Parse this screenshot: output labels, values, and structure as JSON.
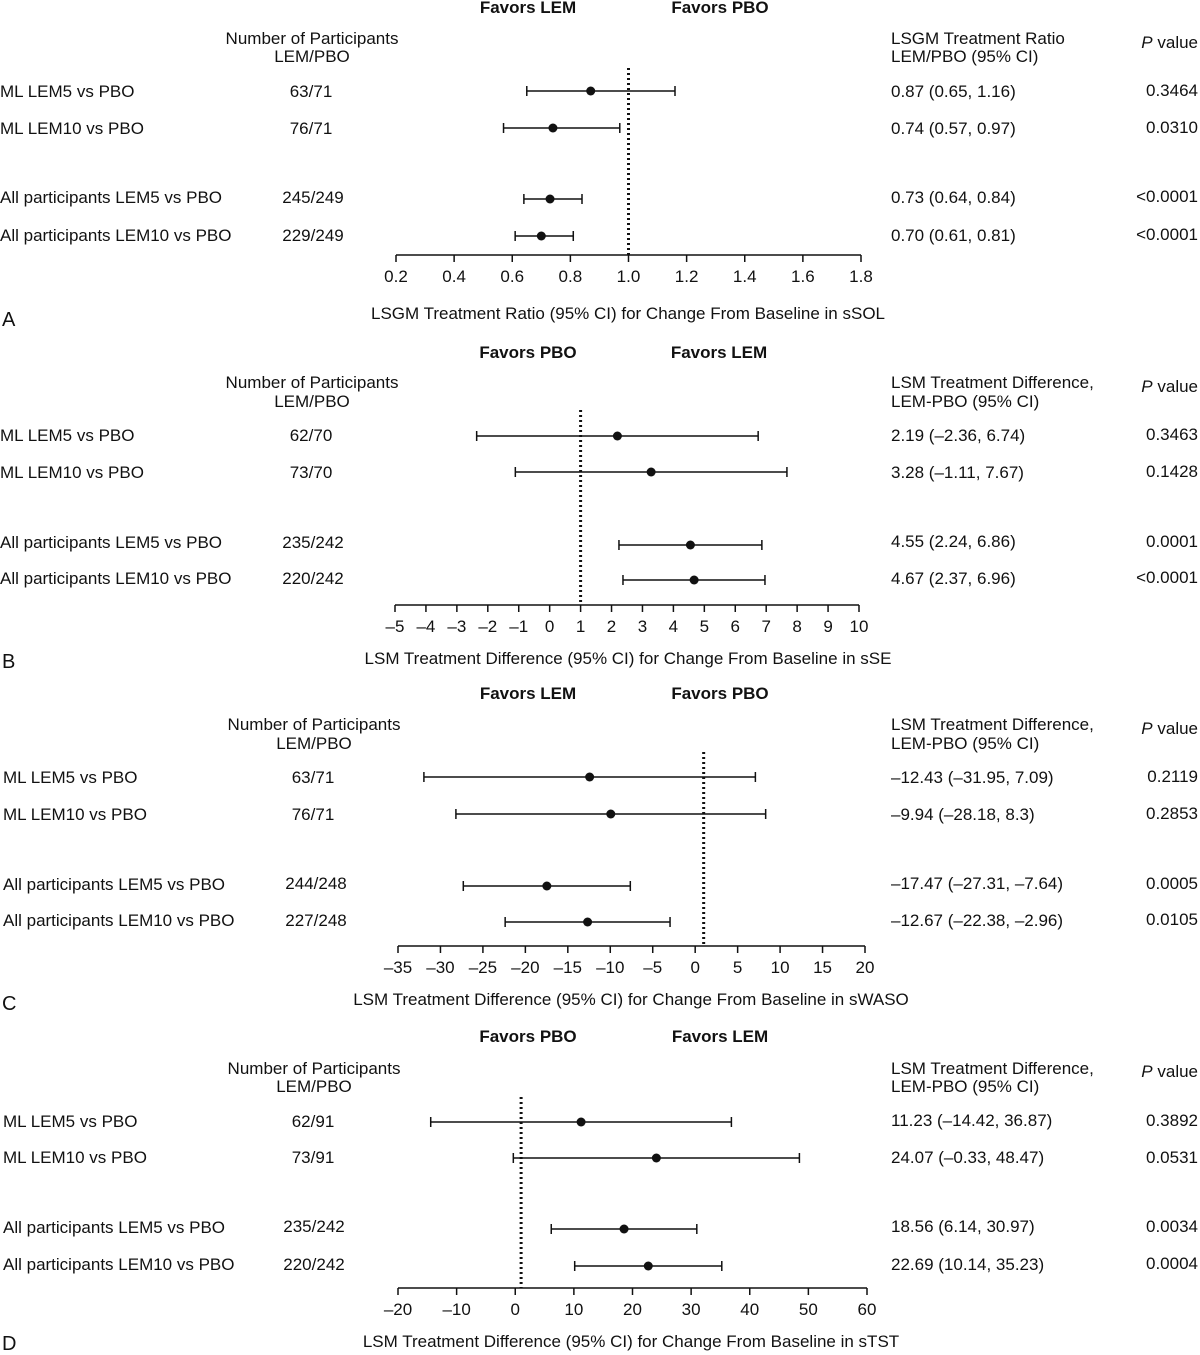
{
  "chart_data": [
    {
      "type": "forest",
      "panel_letter": "A",
      "favors_left": "Favors LEM",
      "favors_right": "Favors PBO",
      "participants_header": [
        "Number of Participants",
        "LEM/PBO"
      ],
      "estimate_header": [
        "LSGM Treatment Ratio",
        "LEM/PBO (95% CI)"
      ],
      "pvalue_header": [
        "P",
        "value"
      ],
      "reference": 1.0,
      "xlim": [
        0.2,
        1.8
      ],
      "ticks": [
        0.2,
        0.4,
        0.6,
        0.8,
        1.0,
        1.2,
        1.4,
        1.6,
        1.8
      ],
      "tick_labels": [
        "0.2",
        "0.4",
        "0.6",
        "0.8",
        "1.0",
        "1.2",
        "1.4",
        "1.6",
        "1.8"
      ],
      "xlabel": "LSGM Treatment Ratio (95% CI) for Change From Baseline in sSOL",
      "rows": [
        {
          "label": "ML LEM5 vs PBO",
          "n": "63/71",
          "estimate": 0.87,
          "low": 0.65,
          "high": 1.16,
          "text": "0.87 (0.65, 1.16)",
          "p": "0.3464"
        },
        {
          "label": "ML LEM10 vs PBO",
          "n": "76/71",
          "estimate": 0.74,
          "low": 0.57,
          "high": 0.97,
          "text": "0.74 (0.57, 0.97)",
          "p": "0.0310"
        },
        {
          "label": "All participants LEM5 vs PBO",
          "n": "245/249",
          "estimate": 0.73,
          "low": 0.64,
          "high": 0.84,
          "text": "0.73 (0.64, 0.84)",
          "p": "<0.0001"
        },
        {
          "label": "All participants LEM10 vs PBO",
          "n": "229/249",
          "estimate": 0.7,
          "low": 0.61,
          "high": 0.81,
          "text": "0.70 (0.61, 0.81)",
          "p": "<0.0001"
        }
      ]
    },
    {
      "type": "forest",
      "panel_letter": "B",
      "favors_left": "Favors PBO",
      "favors_right": "Favors LEM",
      "participants_header": [
        "Number of Participants",
        "LEM/PBO"
      ],
      "estimate_header": [
        "LSM Treatment Difference,",
        "LEM-PBO (95% CI)"
      ],
      "pvalue_header": [
        "P",
        "value"
      ],
      "reference": 1,
      "xlim": [
        -5,
        10
      ],
      "ticks": [
        -5,
        -4,
        -3,
        -2,
        -1,
        0,
        1,
        2,
        3,
        4,
        5,
        6,
        7,
        8,
        9,
        10
      ],
      "tick_labels": [
        "–5",
        "–4",
        "–3",
        "–2",
        "–1",
        "0",
        "1",
        "2",
        "3",
        "4",
        "5",
        "6",
        "7",
        "8",
        "9",
        "10"
      ],
      "xlabel": "LSM Treatment Difference (95% CI) for Change From Baseline in sSE",
      "rows": [
        {
          "label": "ML LEM5 vs PBO",
          "n": "62/70",
          "estimate": 2.19,
          "low": -2.36,
          "high": 6.74,
          "text": "2.19 (–2.36, 6.74)",
          "p": "0.3463"
        },
        {
          "label": "ML LEM10 vs PBO",
          "n": "73/70",
          "estimate": 3.28,
          "low": -1.11,
          "high": 7.67,
          "text": "3.28 (–1.11, 7.67)",
          "p": "0.1428"
        },
        {
          "label": "All participants LEM5 vs PBO",
          "n": "235/242",
          "estimate": 4.55,
          "low": 2.24,
          "high": 6.86,
          "text": "4.55 (2.24, 6.86)",
          "p": "0.0001"
        },
        {
          "label": "All participants LEM10 vs PBO",
          "n": "220/242",
          "estimate": 4.67,
          "low": 2.37,
          "high": 6.96,
          "text": "4.67 (2.37, 6.96)",
          "p": "<0.0001"
        }
      ]
    },
    {
      "type": "forest",
      "panel_letter": "C",
      "favors_left": "Favors LEM",
      "favors_right": "Favors PBO",
      "participants_header": [
        "Number of Participants",
        "LEM/PBO"
      ],
      "estimate_header": [
        "LSM Treatment Difference,",
        "LEM-PBO (95% CI)"
      ],
      "pvalue_header": [
        "P",
        "value"
      ],
      "reference": 1,
      "xlim": [
        -35,
        20
      ],
      "ticks": [
        -35,
        -30,
        -25,
        -20,
        -15,
        -10,
        -5,
        0,
        5,
        10,
        15,
        20
      ],
      "tick_labels": [
        "–35",
        "–30",
        "–25",
        "–20",
        "–15",
        "–10",
        "–5",
        "0",
        "5",
        "10",
        "15",
        "20"
      ],
      "xlabel": "LSM Treatment Difference (95% CI) for Change From Baseline in sWASO",
      "rows": [
        {
          "label": "ML LEM5 vs PBO",
          "n": "63/71",
          "estimate": -12.43,
          "low": -31.95,
          "high": 7.09,
          "text": "–12.43 (–31.95, 7.09)",
          "p": "0.2119"
        },
        {
          "label": "ML LEM10 vs PBO",
          "n": "76/71",
          "estimate": -9.94,
          "low": -28.18,
          "high": 8.3,
          "text": "–9.94 (–28.18, 8.3)",
          "p": "0.2853"
        },
        {
          "label": "All participants LEM5 vs PBO",
          "n": "244/248",
          "estimate": -17.47,
          "low": -27.31,
          "high": -7.64,
          "text": "–17.47 (–27.31, –7.64)",
          "p": "0.0005"
        },
        {
          "label": "All participants LEM10 vs PBO",
          "n": "227/248",
          "estimate": -12.67,
          "low": -22.38,
          "high": -2.96,
          "text": "–12.67 (–22.38, –2.96)",
          "p": "0.0105"
        }
      ]
    },
    {
      "type": "forest",
      "panel_letter": "D",
      "favors_left": "Favors PBO",
      "favors_right": "Favors LEM",
      "participants_header": [
        "Number of Participants",
        "LEM/PBO"
      ],
      "estimate_header": [
        "LSM Treatment Difference,",
        "LEM-PBO (95% CI)"
      ],
      "pvalue_header": [
        "P",
        "value"
      ],
      "reference": 1,
      "xlim": [
        -20,
        60
      ],
      "ticks": [
        -20,
        -10,
        0,
        10,
        20,
        30,
        40,
        50,
        60
      ],
      "tick_labels": [
        "–20",
        "–10",
        "0",
        "10",
        "20",
        "30",
        "40",
        "50",
        "60"
      ],
      "xlabel": "LSM Treatment Difference (95% CI) for Change From Baseline in sTST",
      "rows": [
        {
          "label": "ML LEM5 vs PBO",
          "n": "62/91",
          "estimate": 11.23,
          "low": -14.42,
          "high": 36.87,
          "text": "11.23 (–14.42, 36.87)",
          "p": "0.3892"
        },
        {
          "label": "ML LEM10 vs PBO",
          "n": "73/91",
          "estimate": 24.07,
          "low": -0.33,
          "high": 48.47,
          "text": "24.07 (–0.33, 48.47)",
          "p": "0.0531"
        },
        {
          "label": "All participants LEM5 vs PBO",
          "n": "235/242",
          "estimate": 18.56,
          "low": 6.14,
          "high": 30.97,
          "text": "18.56 (6.14, 30.97)",
          "p": "0.0034"
        },
        {
          "label": "All participants LEM10 vs PBO",
          "n": "220/242",
          "estimate": 22.69,
          "low": 10.14,
          "high": 35.23,
          "text": "22.69 (10.14, 35.23)",
          "p": "0.0004"
        }
      ]
    }
  ]
}
